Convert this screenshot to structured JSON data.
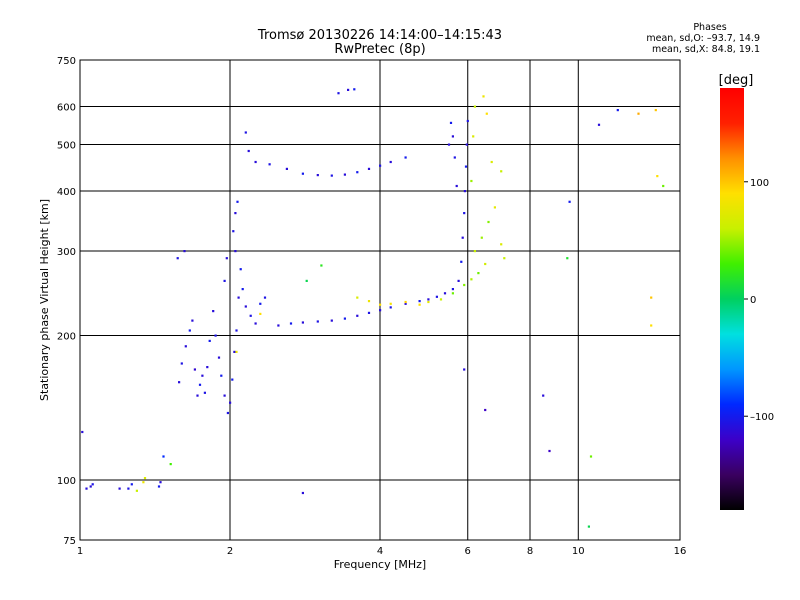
{
  "header": {
    "title": "Tromsø 20130226 14:14:00–14:15:43",
    "subtitle": "RwPretec (8p)"
  },
  "stats": {
    "heading": "Phases",
    "line_o": "mean, sd,O: –93.7, 14.9",
    "line_x": "mean, sd,X:  84.8, 19.1"
  },
  "colorbar": {
    "label": "[deg]",
    "ticks": [
      {
        "value": 100,
        "label": "100"
      },
      {
        "value": 0,
        "label": "0"
      },
      {
        "value": -100,
        "label": "–100"
      }
    ],
    "range": [
      -180,
      180
    ],
    "colors": [
      "#000000",
      "#3a0060",
      "#3c00c8",
      "#0028ff",
      "#0096ff",
      "#00e0e0",
      "#00d060",
      "#40f000",
      "#c8f000",
      "#ffe000",
      "#ff9000",
      "#ff2000",
      "#ff0000"
    ]
  },
  "chart_data": {
    "type": "scatter",
    "xlabel": "Frequency [MHz]",
    "ylabel": "Stationary phase Virtual Height [km]",
    "xscale": "log",
    "yscale": "log",
    "xlim": [
      1,
      16
    ],
    "ylim": [
      75,
      750
    ],
    "xticks": [
      {
        "value": 1,
        "label": "1"
      },
      {
        "value": 2,
        "label": "2"
      },
      {
        "value": 4,
        "label": "4"
      },
      {
        "value": 6,
        "label": "6"
      },
      {
        "value": 8,
        "label": "8"
      },
      {
        "value": 10,
        "label": "10"
      },
      {
        "value": 16,
        "label": "16"
      }
    ],
    "yticks": [
      {
        "value": 75,
        "label": "75"
      },
      {
        "value": 100,
        "label": "100"
      },
      {
        "value": 200,
        "label": "200"
      },
      {
        "value": 300,
        "label": "300"
      },
      {
        "value": 400,
        "label": "400"
      },
      {
        "value": 500,
        "label": "500"
      },
      {
        "value": 600,
        "label": "600"
      },
      {
        "value": 750,
        "label": "750"
      }
    ],
    "grid": true,
    "points": [
      [
        1.01,
        126,
        -110
      ],
      [
        1.03,
        96,
        -110
      ],
      [
        1.05,
        97,
        -110
      ],
      [
        1.06,
        98,
        -105
      ],
      [
        1.2,
        96,
        -110
      ],
      [
        1.25,
        96,
        -105
      ],
      [
        1.27,
        98,
        -100
      ],
      [
        1.3,
        95,
        60
      ],
      [
        1.34,
        99,
        80
      ],
      [
        1.35,
        101,
        70
      ],
      [
        1.44,
        97,
        -100
      ],
      [
        1.45,
        99,
        -110
      ],
      [
        1.47,
        112,
        -90
      ],
      [
        1.52,
        108,
        30
      ],
      [
        1.58,
        160,
        -110
      ],
      [
        1.6,
        175,
        -105
      ],
      [
        1.63,
        190,
        -110
      ],
      [
        1.66,
        205,
        -100
      ],
      [
        1.68,
        215,
        -110
      ],
      [
        1.7,
        170,
        -115
      ],
      [
        1.72,
        150,
        -110
      ],
      [
        1.74,
        158,
        -100
      ],
      [
        1.76,
        165,
        -110
      ],
      [
        1.78,
        152,
        -105
      ],
      [
        1.8,
        172,
        -110
      ],
      [
        1.82,
        195,
        -100
      ],
      [
        1.85,
        225,
        -110
      ],
      [
        1.87,
        200,
        -105
      ],
      [
        1.9,
        180,
        -110
      ],
      [
        1.92,
        165,
        -100
      ],
      [
        1.95,
        150,
        -110
      ],
      [
        1.98,
        138,
        -105
      ],
      [
        2.0,
        145,
        -110
      ],
      [
        2.02,
        162,
        -100
      ],
      [
        2.04,
        185,
        -110
      ],
      [
        2.06,
        205,
        -105
      ],
      [
        2.08,
        240,
        -110
      ],
      [
        2.1,
        275,
        -100
      ],
      [
        2.05,
        300,
        -110
      ],
      [
        2.03,
        330,
        -105
      ],
      [
        2.05,
        360,
        -110
      ],
      [
        2.07,
        380,
        -100
      ],
      [
        1.97,
        290,
        -110
      ],
      [
        1.95,
        260,
        -105
      ],
      [
        2.12,
        250,
        -100
      ],
      [
        2.15,
        230,
        -110
      ],
      [
        2.2,
        220,
        -105
      ],
      [
        2.25,
        212,
        -110
      ],
      [
        2.3,
        233,
        -100
      ],
      [
        2.35,
        240,
        -105
      ],
      [
        2.5,
        210,
        -110
      ],
      [
        2.65,
        212,
        -100
      ],
      [
        2.8,
        213,
        -110
      ],
      [
        3.0,
        214,
        -105
      ],
      [
        3.2,
        215,
        -110
      ],
      [
        3.4,
        217,
        -100
      ],
      [
        3.6,
        220,
        -110
      ],
      [
        3.8,
        223,
        -105
      ],
      [
        4.0,
        226,
        -110
      ],
      [
        4.2,
        229,
        -105
      ],
      [
        4.5,
        233,
        -110
      ],
      [
        4.8,
        236,
        -100
      ],
      [
        5.0,
        238,
        -110
      ],
      [
        5.2,
        241,
        -105
      ],
      [
        5.4,
        245,
        -110
      ],
      [
        5.6,
        250,
        -105
      ],
      [
        5.75,
        260,
        -110
      ],
      [
        5.82,
        285,
        -100
      ],
      [
        5.86,
        320,
        -110
      ],
      [
        5.9,
        360,
        -105
      ],
      [
        5.92,
        400,
        -110
      ],
      [
        5.95,
        450,
        -100
      ],
      [
        5.97,
        500,
        -110
      ],
      [
        6.0,
        560,
        -105
      ],
      [
        5.7,
        410,
        -110
      ],
      [
        5.65,
        470,
        -105
      ],
      [
        5.6,
        520,
        -110
      ],
      [
        5.55,
        555,
        -100
      ],
      [
        5.5,
        500,
        -110
      ],
      [
        2.25,
        460,
        -110
      ],
      [
        2.4,
        455,
        -105
      ],
      [
        2.6,
        445,
        -110
      ],
      [
        2.8,
        435,
        -100
      ],
      [
        3.0,
        432,
        -110
      ],
      [
        3.2,
        431,
        -105
      ],
      [
        3.4,
        433,
        -110
      ],
      [
        3.6,
        438,
        -100
      ],
      [
        3.8,
        445,
        -110
      ],
      [
        4.0,
        452,
        -105
      ],
      [
        4.2,
        460,
        -110
      ],
      [
        4.5,
        470,
        -100
      ],
      [
        2.18,
        485,
        -110
      ],
      [
        2.15,
        530,
        -105
      ],
      [
        3.45,
        650,
        -110
      ],
      [
        3.55,
        652,
        -100
      ],
      [
        3.3,
        640,
        -105
      ],
      [
        3.6,
        240,
        70
      ],
      [
        3.8,
        236,
        80
      ],
      [
        4.0,
        232,
        90
      ],
      [
        4.2,
        233,
        85
      ],
      [
        4.5,
        235,
        95
      ],
      [
        4.8,
        232,
        90
      ],
      [
        5.0,
        235,
        75
      ],
      [
        5.3,
        238,
        60
      ],
      [
        5.6,
        245,
        40
      ],
      [
        5.9,
        255,
        45
      ],
      [
        6.1,
        262,
        55
      ],
      [
        6.3,
        270,
        40
      ],
      [
        6.5,
        282,
        65
      ],
      [
        6.2,
        300,
        60
      ],
      [
        6.4,
        320,
        50
      ],
      [
        6.6,
        345,
        45
      ],
      [
        6.8,
        370,
        75
      ],
      [
        7.0,
        310,
        70
      ],
      [
        7.1,
        290,
        60
      ],
      [
        6.1,
        420,
        50
      ],
      [
        6.15,
        520,
        70
      ],
      [
        6.2,
        600,
        60
      ],
      [
        6.45,
        630,
        80
      ],
      [
        6.55,
        580,
        90
      ],
      [
        6.7,
        460,
        70
      ],
      [
        7.0,
        440,
        60
      ],
      [
        3.05,
        280,
        20
      ],
      [
        2.85,
        260,
        5
      ],
      [
        5.9,
        170,
        -110
      ],
      [
        6.5,
        140,
        -120
      ],
      [
        8.5,
        150,
        -110
      ],
      [
        8.75,
        115,
        -120
      ],
      [
        9.5,
        290,
        15
      ],
      [
        9.6,
        380,
        -100
      ],
      [
        10.5,
        80,
        5
      ],
      [
        10.6,
        112,
        40
      ],
      [
        11.0,
        550,
        -110
      ],
      [
        14.0,
        210,
        90
      ],
      [
        14.0,
        240,
        100
      ],
      [
        14.3,
        590,
        100
      ],
      [
        14.4,
        430,
        90
      ],
      [
        14.8,
        410,
        40
      ],
      [
        12.0,
        590,
        -100
      ],
      [
        13.2,
        580,
        110
      ],
      [
        2.8,
        94,
        -110
      ],
      [
        1.57,
        290,
        -105
      ],
      [
        1.62,
        300,
        -110
      ],
      [
        2.06,
        185,
        80
      ],
      [
        2.3,
        222,
        90
      ]
    ]
  }
}
